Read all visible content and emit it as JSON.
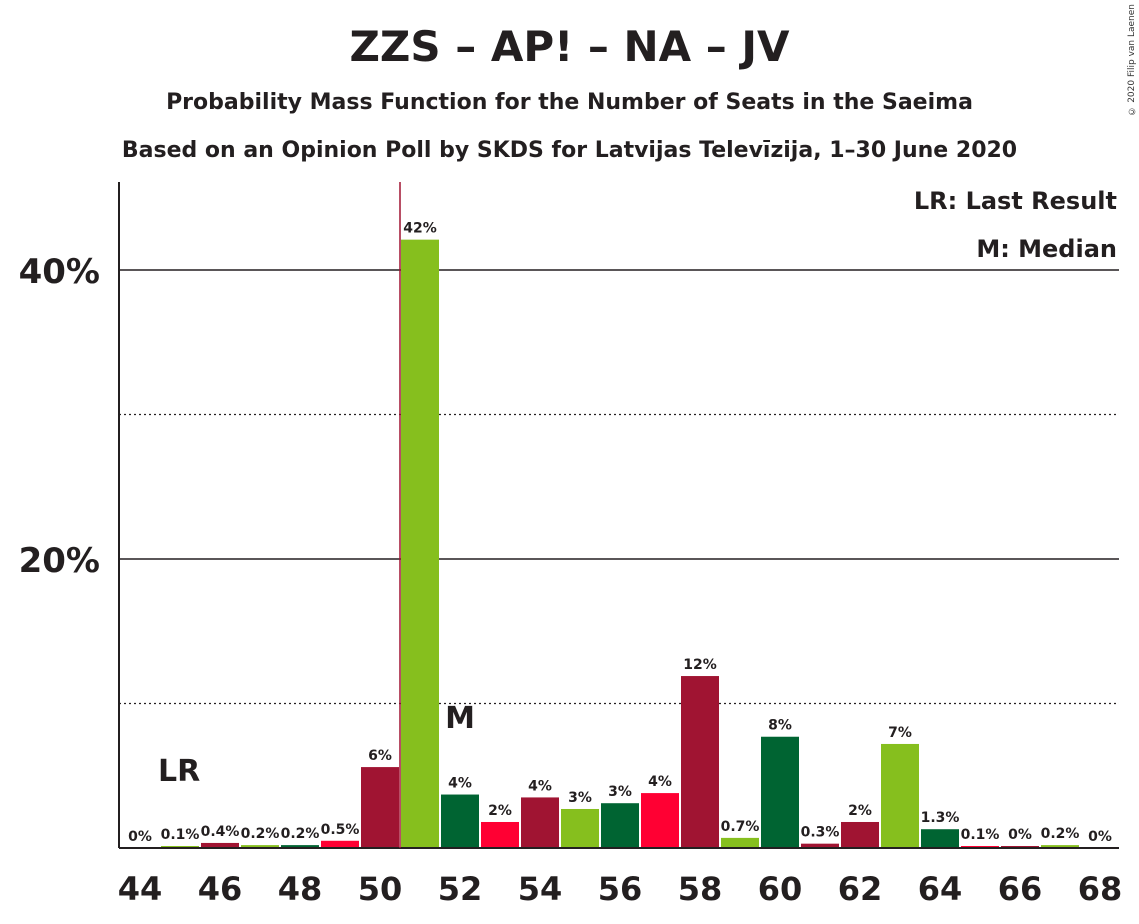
{
  "title": "ZZS – AP! – NA – JV",
  "subtitle": "Probability Mass Function for the Number of Seats in the Saeima",
  "subtitle2": "Based on an Opinion Poll by SKDS for Latvijas Televīzija, 1–30 June 2020",
  "copyright": "© 2020 Filip van Laenen",
  "legend": {
    "lr": "LR: Last Result",
    "m": "M: Median"
  },
  "markers": {
    "lr_label": "LR",
    "m_label": "M"
  },
  "colors": {
    "crimson": "#a01432",
    "lime": "#86bf1e",
    "green": "#006432",
    "red": "#ff0033"
  },
  "chart_data": {
    "type": "bar",
    "x": [
      44,
      45,
      46,
      47,
      48,
      49,
      50,
      51,
      52,
      53,
      54,
      55,
      56,
      57,
      58,
      59,
      60,
      61,
      62,
      63,
      64,
      65,
      66,
      67,
      68
    ],
    "values": [
      0,
      0.1,
      0.4,
      0.2,
      0.2,
      0.5,
      6,
      42,
      4,
      2,
      4,
      3,
      3,
      4,
      12,
      0.7,
      8,
      0.3,
      2,
      7,
      1.3,
      0.1,
      0,
      0.2,
      0
    ],
    "bar_values_estimated": [
      0,
      0.05,
      0.35,
      0.2,
      0.2,
      0.5,
      5.6,
      42.1,
      3.7,
      1.8,
      3.5,
      2.7,
      3.1,
      3.8,
      11.9,
      0.7,
      7.7,
      0.3,
      1.8,
      7.2,
      1.3,
      0.1,
      0.05,
      0.2,
      0
    ],
    "labels": [
      "0%",
      "0.1%",
      "0.4%",
      "0.2%",
      "0.2%",
      "0.5%",
      "6%",
      "42%",
      "4%",
      "2%",
      "4%",
      "3%",
      "3%",
      "4%",
      "12%",
      "0.7%",
      "8%",
      "0.3%",
      "2%",
      "7%",
      "1.3%",
      "0.1%",
      "0%",
      "0.2%",
      "0%"
    ],
    "bar_colors": [
      "crimson",
      "lime",
      "crimson",
      "lime",
      "green",
      "red",
      "crimson",
      "lime",
      "green",
      "red",
      "crimson",
      "lime",
      "green",
      "red",
      "crimson",
      "lime",
      "green",
      "crimson",
      "crimson",
      "lime",
      "green",
      "red",
      "crimson",
      "lime",
      "green"
    ],
    "x_ticks": [
      "44",
      "46",
      "48",
      "50",
      "52",
      "54",
      "56",
      "58",
      "60",
      "62",
      "64",
      "66",
      "68"
    ],
    "y_ticks": [
      "20%",
      "40%"
    ],
    "ylim": [
      0,
      46
    ],
    "last_result": 51,
    "median": 52,
    "grid": "solid at 20% and 40%, dotted at 10% and 30%",
    "legend_position": "top-right"
  }
}
